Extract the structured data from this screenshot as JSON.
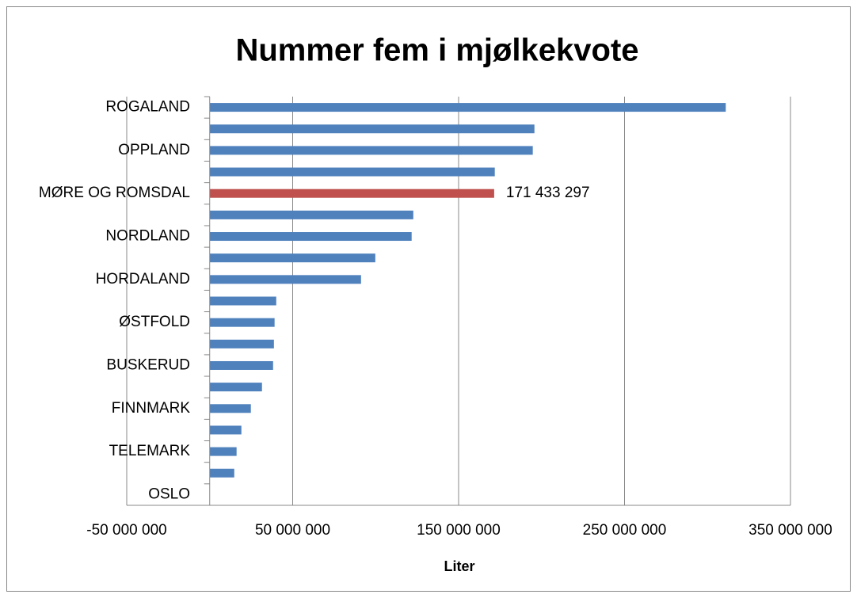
{
  "chart_data": {
    "type": "bar",
    "orientation": "horizontal",
    "title": "Nummer fem i mjølkekvote",
    "x_label": "Liter",
    "categories": [
      "ROGALAND",
      null,
      "OPPLAND",
      null,
      "MØRE OG ROMSDAL",
      null,
      "NORDLAND",
      null,
      "HORDALAND",
      null,
      "ØSTFOLD",
      null,
      "BUSKERUD",
      null,
      "FINNMARK",
      null,
      "TELEMARK",
      null,
      "OSLO"
    ],
    "values": [
      311000000,
      195700000,
      194700000,
      171800000,
      171433297,
      122700000,
      121700000,
      99800000,
      91200000,
      40100000,
      39100000,
      38700000,
      38200000,
      31500000,
      24800000,
      19100000,
      16200000,
      14800000,
      0
    ],
    "value_labels": [
      null,
      null,
      null,
      null,
      "171 433 297",
      null,
      null,
      null,
      null,
      null,
      null,
      null,
      null,
      null,
      null,
      null,
      null,
      null,
      null
    ],
    "colors": [
      "#4f81bd",
      "#4f81bd",
      "#4f81bd",
      "#4f81bd",
      "#c0504d",
      "#4f81bd",
      "#4f81bd",
      "#4f81bd",
      "#4f81bd",
      "#4f81bd",
      "#4f81bd",
      "#4f81bd",
      "#4f81bd",
      "#4f81bd",
      "#4f81bd",
      "#4f81bd",
      "#4f81bd",
      "#4f81bd",
      "#4f81bd"
    ],
    "xlim": [
      -50000000,
      350000000
    ],
    "xticks": [
      {
        "value": -50000000,
        "label": "-50 000 000"
      },
      {
        "value": 50000000,
        "label": "50 000 000"
      },
      {
        "value": 150000000,
        "label": "150 000 000"
      },
      {
        "value": 250000000,
        "label": "250 000 000"
      },
      {
        "value": 350000000,
        "label": "350 000 000"
      }
    ],
    "grid": true
  }
}
